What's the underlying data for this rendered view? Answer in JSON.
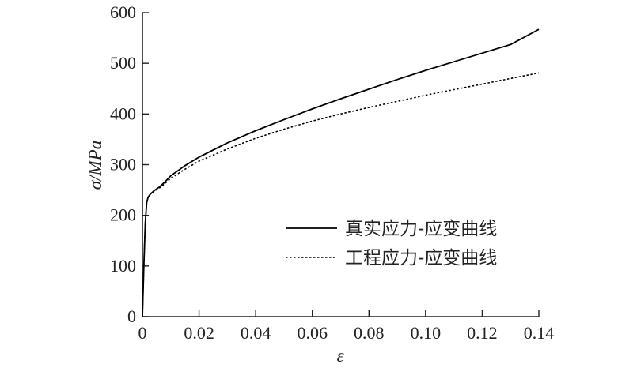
{
  "chart_data": {
    "type": "line",
    "xlabel": "ε",
    "ylabel": "σ/MPa",
    "xlim": [
      0,
      0.14
    ],
    "ylim": [
      0,
      600
    ],
    "x_ticks": [
      "0",
      "0.02",
      "0.04",
      "0.06",
      "0.08",
      "0.10",
      "0.12",
      "0.14"
    ],
    "y_ticks": [
      "0",
      "100",
      "200",
      "300",
      "400",
      "500",
      "600"
    ],
    "grid": false,
    "legend_position": "center-right",
    "series": [
      {
        "name": "真实应力-应变曲线",
        "line_style": "solid",
        "color": "#000000",
        "x": [
          0,
          0.0005,
          0.001,
          0.0015,
          0.002,
          0.003,
          0.004,
          0.006,
          0.008,
          0.01,
          0.015,
          0.02,
          0.03,
          0.04,
          0.05,
          0.06,
          0.07,
          0.08,
          0.09,
          0.1,
          0.11,
          0.12,
          0.13,
          0.14
        ],
        "y": [
          0,
          100,
          185,
          225,
          236,
          243,
          248,
          256,
          266,
          278,
          298,
          315,
          343,
          367,
          389,
          410,
          430,
          449,
          468,
          486,
          503,
          520,
          537,
          567
        ]
      },
      {
        "name": "工程应力-应变曲线",
        "line_style": "dotted",
        "color": "#000000",
        "x": [
          0,
          0.0005,
          0.001,
          0.0015,
          0.002,
          0.003,
          0.004,
          0.006,
          0.008,
          0.01,
          0.015,
          0.02,
          0.03,
          0.04,
          0.05,
          0.06,
          0.07,
          0.08,
          0.09,
          0.1,
          0.11,
          0.12,
          0.13,
          0.14
        ],
        "y": [
          0,
          100,
          185,
          225,
          236,
          243,
          247,
          254,
          263,
          273,
          291,
          307,
          331,
          352,
          370,
          386,
          400,
          413,
          425,
          437,
          448,
          459,
          470,
          481
        ]
      }
    ]
  }
}
